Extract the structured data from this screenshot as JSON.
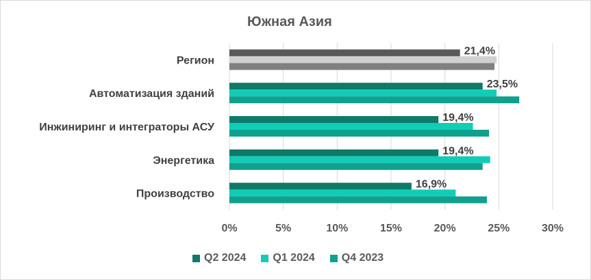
{
  "chart_data": {
    "type": "bar",
    "orientation": "horizontal",
    "title": "Южная Азия",
    "categories": [
      "Регион",
      "Автоматизация зданий",
      "Инжиниринг и интеграторы АСУ",
      "Энергетика",
      "Производство"
    ],
    "series": [
      {
        "name": "Q2 2024",
        "values": [
          21.4,
          23.5,
          19.4,
          19.4,
          16.9
        ],
        "colors": [
          "#595959",
          "#0e7a67",
          "#0e7a67",
          "#0e7a67",
          "#0e7a67"
        ]
      },
      {
        "name": "Q1 2024",
        "values": [
          24.8,
          24.8,
          22.6,
          24.2,
          21.0
        ],
        "colors": [
          "#d0d0d0",
          "#11cdb7",
          "#11cdb7",
          "#11cdb7",
          "#11cdb7"
        ]
      },
      {
        "name": "Q4 2023",
        "values": [
          24.6,
          26.9,
          24.1,
          23.5,
          23.9
        ],
        "colors": [
          "#808080",
          "#10a08f",
          "#10a08f",
          "#10a08f",
          "#10a08f"
        ]
      }
    ],
    "data_labels": [
      "21,4%",
      "23,5%",
      "19,4%",
      "19,4%",
      "16,9%"
    ],
    "x_ticks": [
      "0%",
      "5%",
      "10%",
      "15%",
      "20%",
      "25%",
      "30%"
    ],
    "xlim": [
      0,
      30
    ],
    "grid": true,
    "legend_position": "bottom"
  },
  "legend_colors": [
    "#0e7a67",
    "#11cdb7",
    "#10a08f"
  ]
}
